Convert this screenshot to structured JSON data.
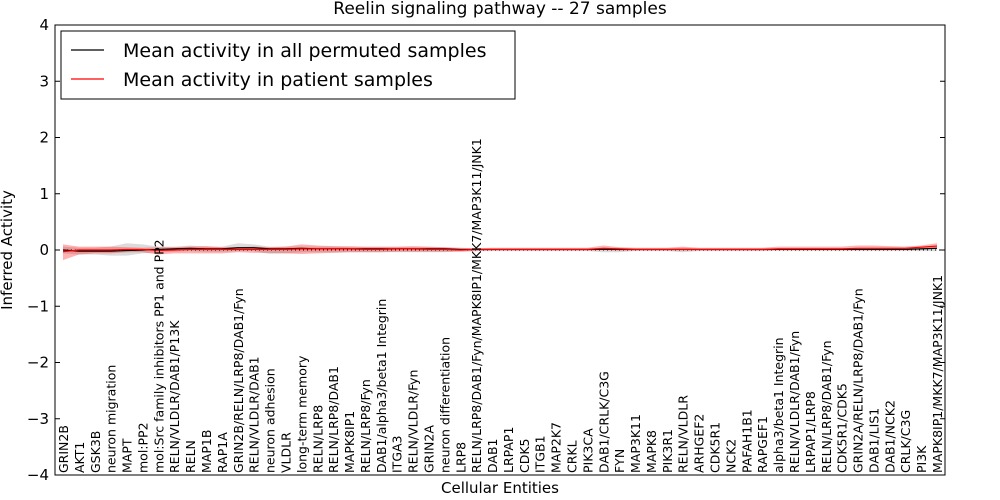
{
  "chart_data": {
    "type": "line",
    "title": "Reelin signaling pathway -- 27 samples",
    "xlabel": "Cellular Entities",
    "ylabel": "Inferred Activity",
    "ylim": [
      -4,
      4
    ],
    "yticks": [
      -4,
      -3,
      -2,
      -1,
      0,
      1,
      2,
      3,
      4
    ],
    "ytick_labels": [
      "−4",
      "−3",
      "−2",
      "−1",
      "0",
      "1",
      "2",
      "3",
      "4"
    ],
    "legend_position": "top-left",
    "categories": [
      "GRIN2B",
      "AKT1",
      "GSK3B",
      "neuron migration",
      "MAPT",
      "mol:PP2",
      "mol:Src family inhibitors PP1 and PP2",
      "RELN/VLDLR/DAB1/P13K",
      "RELN",
      "MAP1B",
      "RAP1A",
      "GRIN2B/RELN/LRP8/DAB1/Fyn",
      "RELN/VLDLR/DAB1",
      "neuron adhesion",
      "VLDLR",
      "long-term memory",
      "RELN/LRP8",
      "RELN/LRP8/DAB1",
      "MAPK8IP1",
      "RELN/LRP8/Fyn",
      "DAB1/alpha3/beta1 Integrin",
      "ITGA3",
      "RELN/VLDLR/Fyn",
      "GRIN2A",
      "neuron differentiation",
      "LRP8",
      "RELN/LRP8/DAB1/Fyn/MAPK8IP1/MKK7/MAP3K11/JNK1",
      "DAB1",
      "LRPAP1",
      "CDK5",
      "ITGB1",
      "MAP2K7",
      "CRKL",
      "PIK3CA",
      "DAB1/CRLK/C3G",
      "FYN",
      "MAP3K11",
      "MAPK8",
      "PIK3R1",
      "RELN/VLDLR",
      "ARHGEF2",
      "CDK5R1",
      "NCK2",
      "PAFAH1B1",
      "RAPGEF1",
      "alpha3/beta1 Integrin",
      "RELN/VLDLR/DAB1/Fyn",
      "LRPAP1/LRP8",
      "RELN/LRP8/DAB1/Fyn",
      "CDK5R1/CDK5",
      "GRIN2A/RELN/LRP8/DAB1/Fyn",
      "DAB1/LIS1",
      "DAB1/NCK2",
      "CRLK/C3G",
      "PI3K",
      "MAPK8IP1/MKK7/MAP3K11/JNK1"
    ],
    "series": [
      {
        "name": "Mean activity in all permuted samples",
        "color": "#000000",
        "values": [
          0.0,
          -0.02,
          -0.02,
          -0.02,
          -0.01,
          0.0,
          0.01,
          0.02,
          0.03,
          0.02,
          0.02,
          0.04,
          0.04,
          0.02,
          0.02,
          0.03,
          0.02,
          0.02,
          0.02,
          0.02,
          0.02,
          0.02,
          0.02,
          0.02,
          0.02,
          0.01,
          0.01,
          0.01,
          0.01,
          0.01,
          0.01,
          0.01,
          0.01,
          0.01,
          0.01,
          0.01,
          0.01,
          0.01,
          0.01,
          0.01,
          0.01,
          0.01,
          0.01,
          0.01,
          0.01,
          0.01,
          0.01,
          0.01,
          0.01,
          0.01,
          0.01,
          0.01,
          0.01,
          0.01,
          0.02,
          0.03
        ],
        "band_lower": [
          -0.06,
          -0.08,
          -0.08,
          -0.1,
          -0.1,
          -0.06,
          -0.04,
          -0.03,
          -0.02,
          -0.03,
          -0.03,
          -0.02,
          -0.02,
          -0.07,
          -0.06,
          -0.04,
          -0.04,
          -0.04,
          -0.04,
          -0.04,
          -0.04,
          -0.04,
          -0.04,
          -0.04,
          -0.04,
          -0.02,
          -0.02,
          -0.02,
          -0.02,
          -0.02,
          -0.02,
          -0.02,
          -0.02,
          -0.02,
          -0.04,
          -0.04,
          -0.02,
          -0.02,
          -0.02,
          -0.04,
          -0.02,
          -0.02,
          -0.02,
          -0.02,
          -0.02,
          -0.02,
          -0.02,
          -0.02,
          -0.02,
          -0.02,
          -0.02,
          -0.02,
          -0.02,
          -0.02,
          -0.02,
          -0.02
        ],
        "band_upper": [
          0.06,
          0.04,
          0.04,
          0.06,
          0.12,
          0.1,
          0.06,
          0.06,
          0.08,
          0.06,
          0.06,
          0.12,
          0.1,
          0.06,
          0.06,
          0.06,
          0.06,
          0.06,
          0.05,
          0.05,
          0.05,
          0.05,
          0.05,
          0.05,
          0.05,
          0.03,
          0.03,
          0.03,
          0.03,
          0.03,
          0.03,
          0.03,
          0.03,
          0.03,
          0.04,
          0.04,
          0.03,
          0.03,
          0.03,
          0.04,
          0.03,
          0.03,
          0.03,
          0.03,
          0.03,
          0.03,
          0.03,
          0.03,
          0.03,
          0.03,
          0.03,
          0.03,
          0.03,
          0.03,
          0.04,
          0.06
        ]
      },
      {
        "name": "Mean activity in patient samples",
        "color": "#ff0000",
        "values": [
          -0.03,
          0.0,
          0.0,
          0.0,
          0.01,
          0.01,
          -0.01,
          0.0,
          0.01,
          0.01,
          0.01,
          0.01,
          0.01,
          0.01,
          0.01,
          0.02,
          0.02,
          0.02,
          0.02,
          0.01,
          0.01,
          0.02,
          0.02,
          0.01,
          0.01,
          0.0,
          0.01,
          0.01,
          0.01,
          0.01,
          0.01,
          0.01,
          0.01,
          0.01,
          0.03,
          0.02,
          0.01,
          0.01,
          0.01,
          0.01,
          0.01,
          0.01,
          0.01,
          0.01,
          0.01,
          0.02,
          0.02,
          0.02,
          0.02,
          0.02,
          0.03,
          0.03,
          0.03,
          0.03,
          0.05,
          0.07
        ],
        "band_lower": [
          -0.18,
          -0.08,
          -0.06,
          -0.06,
          -0.04,
          -0.04,
          -0.08,
          -0.06,
          -0.06,
          -0.06,
          -0.06,
          -0.04,
          -0.05,
          -0.05,
          -0.06,
          -0.07,
          -0.06,
          -0.05,
          -0.04,
          -0.04,
          -0.04,
          -0.03,
          -0.03,
          -0.03,
          -0.03,
          -0.03,
          -0.02,
          -0.01,
          -0.01,
          -0.01,
          -0.01,
          -0.01,
          -0.01,
          -0.01,
          0.0,
          -0.01,
          -0.01,
          -0.01,
          -0.01,
          -0.01,
          -0.01,
          -0.01,
          -0.01,
          -0.01,
          -0.01,
          0.0,
          0.0,
          0.0,
          0.0,
          0.0,
          0.0,
          0.0,
          0.0,
          0.0,
          0.02,
          0.03
        ],
        "band_upper": [
          0.1,
          0.06,
          0.06,
          0.06,
          0.05,
          0.04,
          0.05,
          0.05,
          0.06,
          0.07,
          0.05,
          0.05,
          0.06,
          0.05,
          0.06,
          0.1,
          0.08,
          0.07,
          0.07,
          0.06,
          0.06,
          0.06,
          0.07,
          0.06,
          0.05,
          0.04,
          0.03,
          0.04,
          0.04,
          0.04,
          0.04,
          0.04,
          0.04,
          0.04,
          0.08,
          0.05,
          0.04,
          0.04,
          0.04,
          0.06,
          0.04,
          0.04,
          0.04,
          0.04,
          0.04,
          0.06,
          0.06,
          0.06,
          0.06,
          0.06,
          0.08,
          0.08,
          0.07,
          0.06,
          0.08,
          0.12
        ]
      }
    ],
    "reference_line": {
      "y": 0,
      "style": "dotted"
    }
  }
}
